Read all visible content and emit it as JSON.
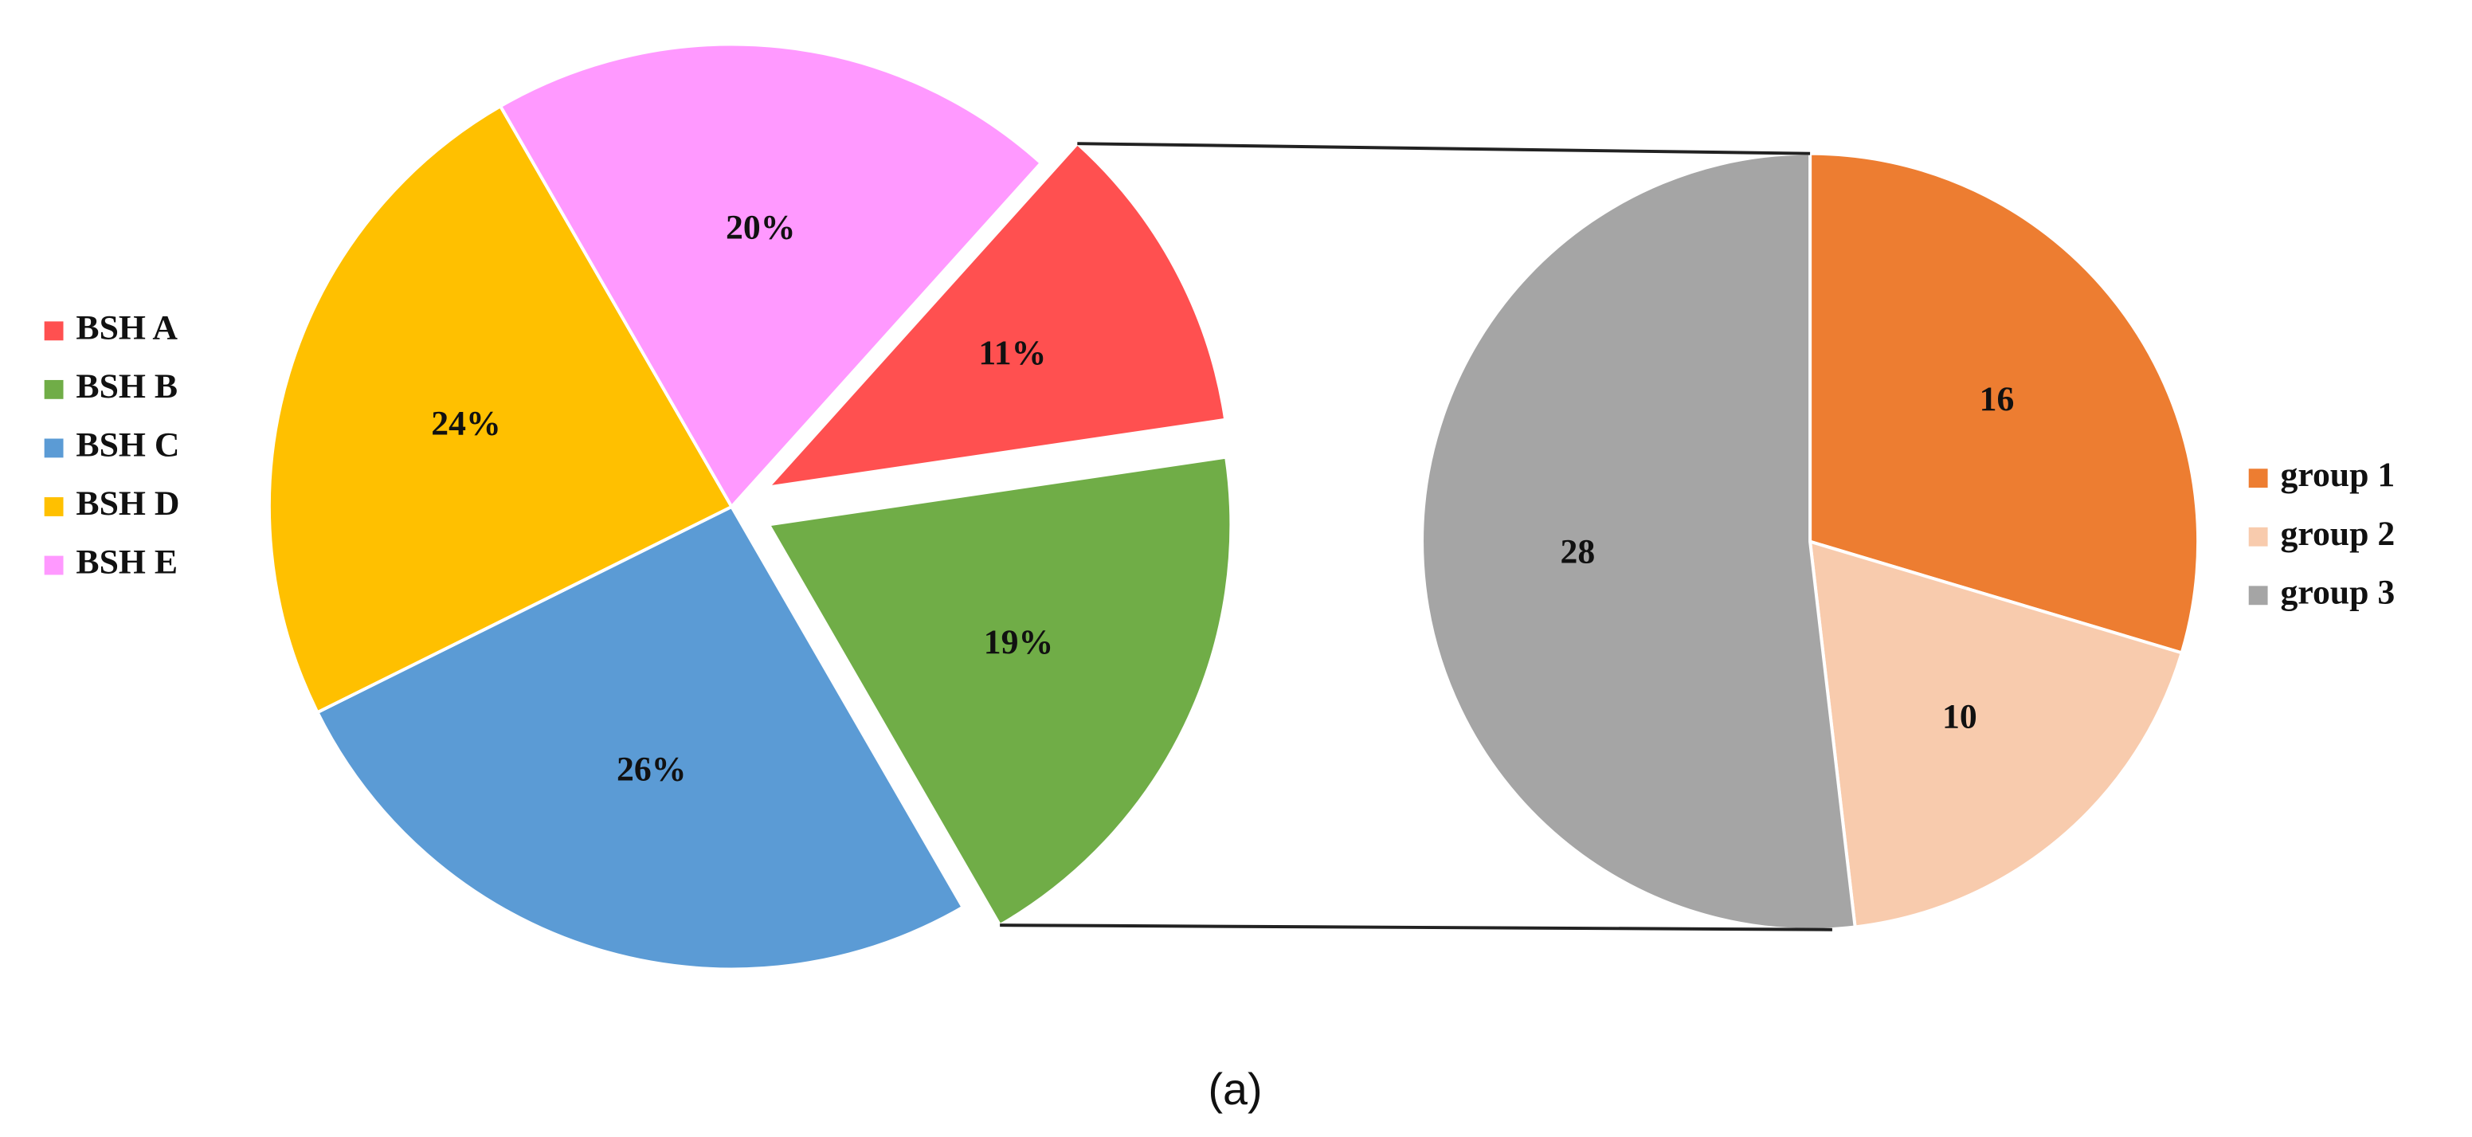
{
  "chart_data": [
    {
      "type": "pie",
      "categories": [
        "BSH A",
        "BSH B",
        "BSH C",
        "BSH D",
        "BSH E"
      ],
      "values": [
        11,
        19,
        26,
        24,
        20
      ],
      "value_labels": [
        "11%",
        "19%",
        "26%",
        "24%",
        "20%"
      ],
      "colors": [
        "#ff5050",
        "#70ad47",
        "#5b9bd5",
        "#ffc000",
        "#ff99ff"
      ],
      "legend": "left"
    },
    {
      "type": "pie",
      "categories": [
        "group 1",
        "group 2",
        "group 3"
      ],
      "values": [
        16,
        10,
        28
      ],
      "colors": [
        "#ed7d31",
        "#f8cbad",
        "#a5a5a5"
      ],
      "legend": "right"
    }
  ],
  "caption": "(a)"
}
